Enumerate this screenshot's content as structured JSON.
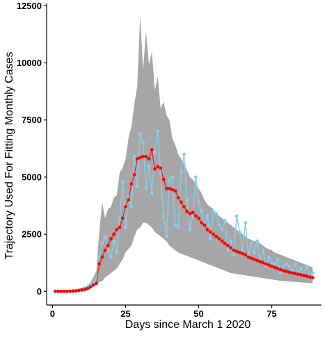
{
  "chart_data": {
    "type": "line",
    "title": "",
    "xlabel": "Days since March 1 2020",
    "ylabel": "Trajectory Used For Fitting Monthly Cases",
    "xlim": [
      -2,
      92
    ],
    "ylim": [
      -600,
      12600
    ],
    "x_ticks": [
      0,
      25,
      50,
      75
    ],
    "x_tick_labels": [
      "0",
      "25",
      "50",
      "75"
    ],
    "y_ticks": [
      0,
      2500,
      5000,
      7500,
      10000,
      12500
    ],
    "y_tick_labels": [
      "0",
      "2500",
      "5000",
      "7500",
      "10000",
      "12500"
    ],
    "grid": false,
    "legend": "none",
    "colors": {
      "band": "#a6a6a6",
      "observed": "#87ceeb",
      "fitted": "#ff0000",
      "axis": "#000000"
    },
    "band": {
      "x": [
        1,
        2,
        3,
        4,
        5,
        6,
        7,
        8,
        9,
        10,
        11,
        12,
        13,
        14,
        15,
        16,
        17,
        18,
        19,
        20,
        21,
        22,
        23,
        24,
        25,
        26,
        27,
        28,
        29,
        30,
        31,
        32,
        33,
        34,
        35,
        36,
        37,
        38,
        39,
        40,
        41,
        42,
        43,
        44,
        45,
        46,
        47,
        48,
        49,
        50,
        51,
        52,
        53,
        54,
        55,
        56,
        57,
        58,
        59,
        60,
        61,
        62,
        63,
        64,
        65,
        66,
        67,
        68,
        69,
        70,
        71,
        72,
        73,
        74,
        75,
        76,
        77,
        78,
        79,
        80,
        81,
        82,
        83,
        84,
        85,
        86,
        87,
        88,
        89
      ],
      "upper": [
        20,
        20,
        25,
        25,
        30,
        35,
        40,
        50,
        60,
        80,
        120,
        250,
        400,
        600,
        900,
        2600,
        3900,
        3200,
        3600,
        3700,
        4100,
        4200,
        5200,
        5400,
        5800,
        6700,
        7200,
        8200,
        9000,
        12100,
        9700,
        11400,
        9900,
        10500,
        8800,
        9400,
        8000,
        8300,
        7700,
        7500,
        6700,
        6400,
        6000,
        5800,
        5600,
        5300,
        5000,
        4900,
        4700,
        4500,
        4300,
        4000,
        3800,
        3700,
        3600,
        3400,
        3300,
        3200,
        3100,
        3000,
        2900,
        2800,
        2700,
        2600,
        2500,
        2400,
        2300,
        2250,
        2200,
        2150,
        2100,
        2000,
        1900,
        1850,
        1800,
        1700,
        1650,
        1600,
        1550,
        1500,
        1450,
        1400,
        1350,
        1300,
        1250,
        1200,
        1150,
        1100,
        1050
      ],
      "lower": [
        0,
        0,
        0,
        0,
        0,
        0,
        0,
        0,
        0,
        0,
        20,
        50,
        100,
        200,
        300,
        400,
        450,
        600,
        700,
        800,
        900,
        1000,
        1200,
        1400,
        1700,
        1850,
        2000,
        2400,
        2700,
        2800,
        3000,
        3000,
        2900,
        2800,
        2600,
        2500,
        2400,
        2300,
        2200,
        2000,
        1900,
        1800,
        1700,
        1650,
        1600,
        1550,
        1500,
        1450,
        1400,
        1350,
        1300,
        1250,
        1200,
        1150,
        1100,
        1050,
        1000,
        950,
        900,
        850,
        800,
        780,
        760,
        740,
        720,
        700,
        680,
        660,
        640,
        620,
        600,
        580,
        560,
        540,
        520,
        500,
        480,
        460,
        450,
        440,
        430,
        420,
        410,
        400,
        390,
        380,
        370,
        360,
        350
      ]
    },
    "series": [
      {
        "style": "observed",
        "x": [
          1,
          2,
          3,
          4,
          5,
          6,
          7,
          8,
          9,
          10,
          11,
          12,
          13,
          14,
          15,
          16,
          17,
          18,
          19,
          20,
          21,
          22,
          23,
          24,
          25,
          26,
          27,
          28,
          29,
          30,
          31,
          32,
          33,
          34,
          35,
          36,
          37,
          38,
          39,
          40,
          41,
          42,
          43,
          44,
          45,
          46,
          47,
          48,
          49,
          50,
          51,
          52,
          53,
          54,
          55,
          56,
          57,
          58,
          59,
          60,
          61,
          62,
          63,
          64,
          65,
          66,
          67,
          68,
          69,
          70,
          71,
          72,
          73,
          74,
          75,
          76,
          77,
          78,
          79,
          80,
          81,
          82,
          83,
          84,
          85,
          86,
          87,
          88,
          89
        ],
        "values": [
          0,
          0,
          0,
          0,
          0,
          10,
          20,
          30,
          50,
          100,
          150,
          200,
          300,
          400,
          500,
          1500,
          2100,
          2400,
          1800,
          1500,
          2200,
          1700,
          3200,
          4800,
          2800,
          4200,
          3700,
          5900,
          4600,
          6900,
          6500,
          4500,
          5500,
          4300,
          6100,
          7000,
          5200,
          3300,
          2400,
          4900,
          5000,
          2900,
          2800,
          5200,
          6000,
          4000,
          2700,
          3300,
          5000,
          3900,
          3500,
          2900,
          3300,
          2300,
          3500,
          3400,
          2900,
          2700,
          3100,
          1800,
          2200,
          1600,
          3300,
          2600,
          1800,
          3000,
          1600,
          2100,
          1700,
          2200,
          1300,
          1800,
          1100,
          1500,
          1200,
          1200,
          1400,
          800,
          1100,
          1200,
          1100,
          900,
          1200,
          800,
          1000,
          700,
          1100,
          700,
          800
        ]
      },
      {
        "style": "fitted",
        "x": [
          1,
          2,
          3,
          4,
          5,
          6,
          7,
          8,
          9,
          10,
          11,
          12,
          13,
          14,
          15,
          16,
          17,
          18,
          19,
          20,
          21,
          22,
          23,
          24,
          25,
          26,
          27,
          28,
          29,
          30,
          31,
          32,
          33,
          34,
          35,
          36,
          37,
          38,
          39,
          40,
          41,
          42,
          43,
          44,
          45,
          46,
          47,
          48,
          49,
          50,
          51,
          52,
          53,
          54,
          55,
          56,
          57,
          58,
          59,
          60,
          61,
          62,
          63,
          64,
          65,
          66,
          67,
          68,
          69,
          70,
          71,
          72,
          73,
          74,
          75,
          76,
          77,
          78,
          79,
          80,
          81,
          82,
          83,
          84,
          85,
          86,
          87,
          88,
          89
        ],
        "values": [
          0,
          0,
          0,
          0,
          0,
          0,
          10,
          20,
          40,
          60,
          80,
          120,
          200,
          280,
          350,
          1200,
          1500,
          1800,
          2000,
          2300,
          2500,
          2700,
          2800,
          3200,
          3700,
          4000,
          4700,
          5100,
          5800,
          5850,
          5900,
          5900,
          5800,
          6200,
          5350,
          5450,
          5400,
          4900,
          4500,
          4500,
          4450,
          4400,
          4100,
          3900,
          3700,
          3500,
          3400,
          3450,
          3300,
          3200,
          3000,
          2900,
          2700,
          2600,
          2500,
          2400,
          2300,
          2200,
          2100,
          2000,
          1900,
          1800,
          1750,
          1700,
          1650,
          1600,
          1500,
          1450,
          1400,
          1350,
          1300,
          1250,
          1200,
          1150,
          1100,
          1050,
          1000,
          950,
          900,
          870,
          840,
          810,
          780,
          750,
          720,
          690,
          660,
          630,
          600
        ]
      }
    ]
  }
}
